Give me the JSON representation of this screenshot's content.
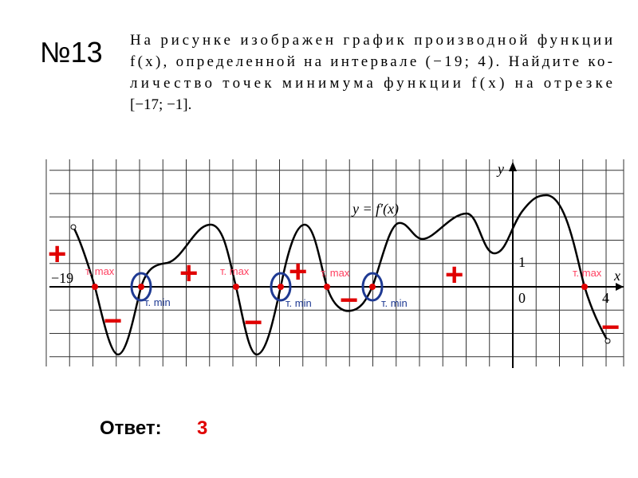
{
  "header": {
    "number": "№13",
    "problem_lines": [
      "На рисунке изображен график производной функции",
      "f(x), определенной на интервале (−19; 4). Найдите ко-",
      "личество точек минимума функции f(x) на отрезке",
      "[−17; −1]."
    ]
  },
  "figure": {
    "y_axis": "y",
    "x_axis": "x",
    "function_label": "y = f′(x)",
    "tick_labels": [
      "−19",
      "1",
      "0",
      "4"
    ],
    "max_labels": [
      "т. max",
      "т. max",
      "т. max",
      "т. max"
    ],
    "min_labels": [
      "т. min",
      "т. min",
      "т. min"
    ],
    "plus_signs": [
      "+",
      "+",
      "+",
      "+"
    ],
    "minus_signs": [
      "−",
      "−",
      "−",
      "−"
    ]
  },
  "answer": {
    "label": "Ответ:",
    "value": "3"
  }
}
